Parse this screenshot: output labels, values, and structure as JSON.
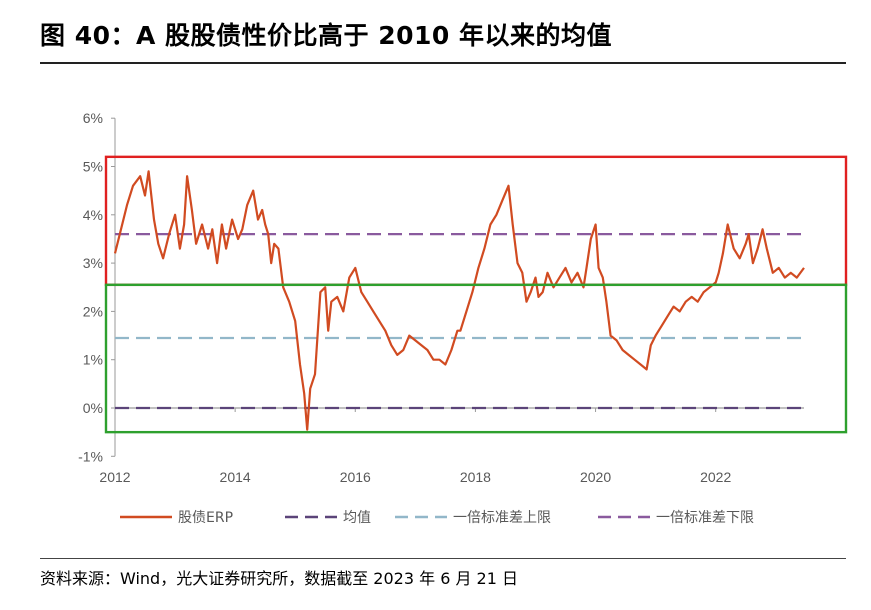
{
  "figure": {
    "title": "图 40：A 股股债性价比高于 2010 年以来的均值",
    "source": "资料来源：Wind，光大证券研究所，数据截至 2023 年 6 月 21 日"
  },
  "chart_data": {
    "type": "line",
    "title": "",
    "xlabel": "",
    "ylabel": "",
    "xlim": [
      2012,
      2023.47
    ],
    "ylim": [
      -1,
      6
    ],
    "x_ticks": [
      "2012",
      "2014",
      "2016",
      "2018",
      "2020",
      "2022"
    ],
    "y_ticks": [
      "-1%",
      "0%",
      "1%",
      "2%",
      "3%",
      "4%",
      "5%",
      "6%"
    ],
    "grid": false,
    "legend_position": "bottom",
    "series": [
      {
        "name": "股债ERP",
        "style": "solid",
        "color": "#d14b21",
        "x": [
          2012.0,
          2012.08,
          2012.2,
          2012.3,
          2012.42,
          2012.5,
          2012.56,
          2012.65,
          2012.72,
          2012.8,
          2012.9,
          2013.0,
          2013.08,
          2013.15,
          2013.2,
          2013.28,
          2013.35,
          2013.45,
          2013.55,
          2013.62,
          2013.7,
          2013.78,
          2013.85,
          2013.95,
          2014.05,
          2014.12,
          2014.2,
          2014.3,
          2014.38,
          2014.45,
          2014.5,
          2014.55,
          2014.6,
          2014.65,
          2014.72,
          2014.8,
          2014.9,
          2015.0,
          2015.08,
          2015.15,
          2015.2,
          2015.25,
          2015.33,
          2015.42,
          2015.5,
          2015.55,
          2015.6,
          2015.7,
          2015.8,
          2015.9,
          2016.0,
          2016.1,
          2016.2,
          2016.3,
          2016.4,
          2016.5,
          2016.6,
          2016.7,
          2016.8,
          2016.9,
          2017.0,
          2017.1,
          2017.2,
          2017.3,
          2017.4,
          2017.5,
          2017.6,
          2017.7,
          2017.75,
          2017.85,
          2017.95,
          2018.05,
          2018.15,
          2018.25,
          2018.35,
          2018.45,
          2018.55,
          2018.62,
          2018.7,
          2018.78,
          2018.85,
          2018.92,
          2019.0,
          2019.05,
          2019.12,
          2019.2,
          2019.3,
          2019.4,
          2019.5,
          2019.6,
          2019.7,
          2019.8,
          2019.85,
          2019.92,
          2020.0,
          2020.05,
          2020.12,
          2020.18,
          2020.25,
          2020.35,
          2020.45,
          2020.55,
          2020.65,
          2020.75,
          2020.85,
          2020.92,
          2021.0,
          2021.1,
          2021.2,
          2021.3,
          2021.4,
          2021.5,
          2021.6,
          2021.7,
          2021.8,
          2021.9,
          2022.0,
          2022.05,
          2022.12,
          2022.2,
          2022.3,
          2022.4,
          2022.5,
          2022.55,
          2022.62,
          2022.7,
          2022.78,
          2022.85,
          2022.95,
          2023.05,
          2023.15,
          2023.25,
          2023.35,
          2023.47
        ],
        "y": [
          3.2,
          3.6,
          4.2,
          4.6,
          4.8,
          4.4,
          4.9,
          3.9,
          3.4,
          3.1,
          3.6,
          4.0,
          3.3,
          3.8,
          4.8,
          4.1,
          3.4,
          3.8,
          3.3,
          3.7,
          3.0,
          3.8,
          3.3,
          3.9,
          3.5,
          3.7,
          4.2,
          4.5,
          3.9,
          4.1,
          3.8,
          3.6,
          3.0,
          3.4,
          3.3,
          2.5,
          2.2,
          1.8,
          0.9,
          0.3,
          -0.45,
          0.4,
          0.7,
          2.4,
          2.5,
          1.6,
          2.2,
          2.3,
          2.0,
          2.7,
          2.9,
          2.4,
          2.2,
          2.0,
          1.8,
          1.6,
          1.3,
          1.1,
          1.2,
          1.5,
          1.4,
          1.3,
          1.2,
          1.0,
          1.0,
          0.9,
          1.2,
          1.6,
          1.6,
          2.0,
          2.4,
          2.9,
          3.3,
          3.8,
          4.0,
          4.3,
          4.6,
          3.8,
          3.0,
          2.8,
          2.2,
          2.4,
          2.7,
          2.3,
          2.4,
          2.8,
          2.5,
          2.7,
          2.9,
          2.6,
          2.8,
          2.5,
          2.9,
          3.5,
          3.8,
          2.9,
          2.7,
          2.2,
          1.5,
          1.4,
          1.2,
          1.1,
          1.0,
          0.9,
          0.8,
          1.3,
          1.5,
          1.7,
          1.9,
          2.1,
          2.0,
          2.2,
          2.3,
          2.2,
          2.4,
          2.5,
          2.6,
          2.8,
          3.2,
          3.8,
          3.3,
          3.1,
          3.4,
          3.6,
          3.0,
          3.3,
          3.7,
          3.3,
          2.8,
          2.9,
          2.7,
          2.8,
          2.7,
          2.9
        ]
      },
      {
        "name": "均值",
        "style": "dashed",
        "color": "#5b4479",
        "y_const": 0.0
      },
      {
        "name": "一倍标准差上限",
        "style": "dashed",
        "color": "#92b7c9",
        "y_const": 1.45
      },
      {
        "name": "一倍标准差下限",
        "style": "dashed",
        "color": "#8a5a9e",
        "y_const": 3.6
      }
    ],
    "highlight_boxes": [
      {
        "color": "#e02020",
        "y_range": [
          2.55,
          5.2
        ]
      },
      {
        "color": "#2ea02e",
        "y_range": [
          -0.5,
          2.55
        ]
      }
    ]
  }
}
